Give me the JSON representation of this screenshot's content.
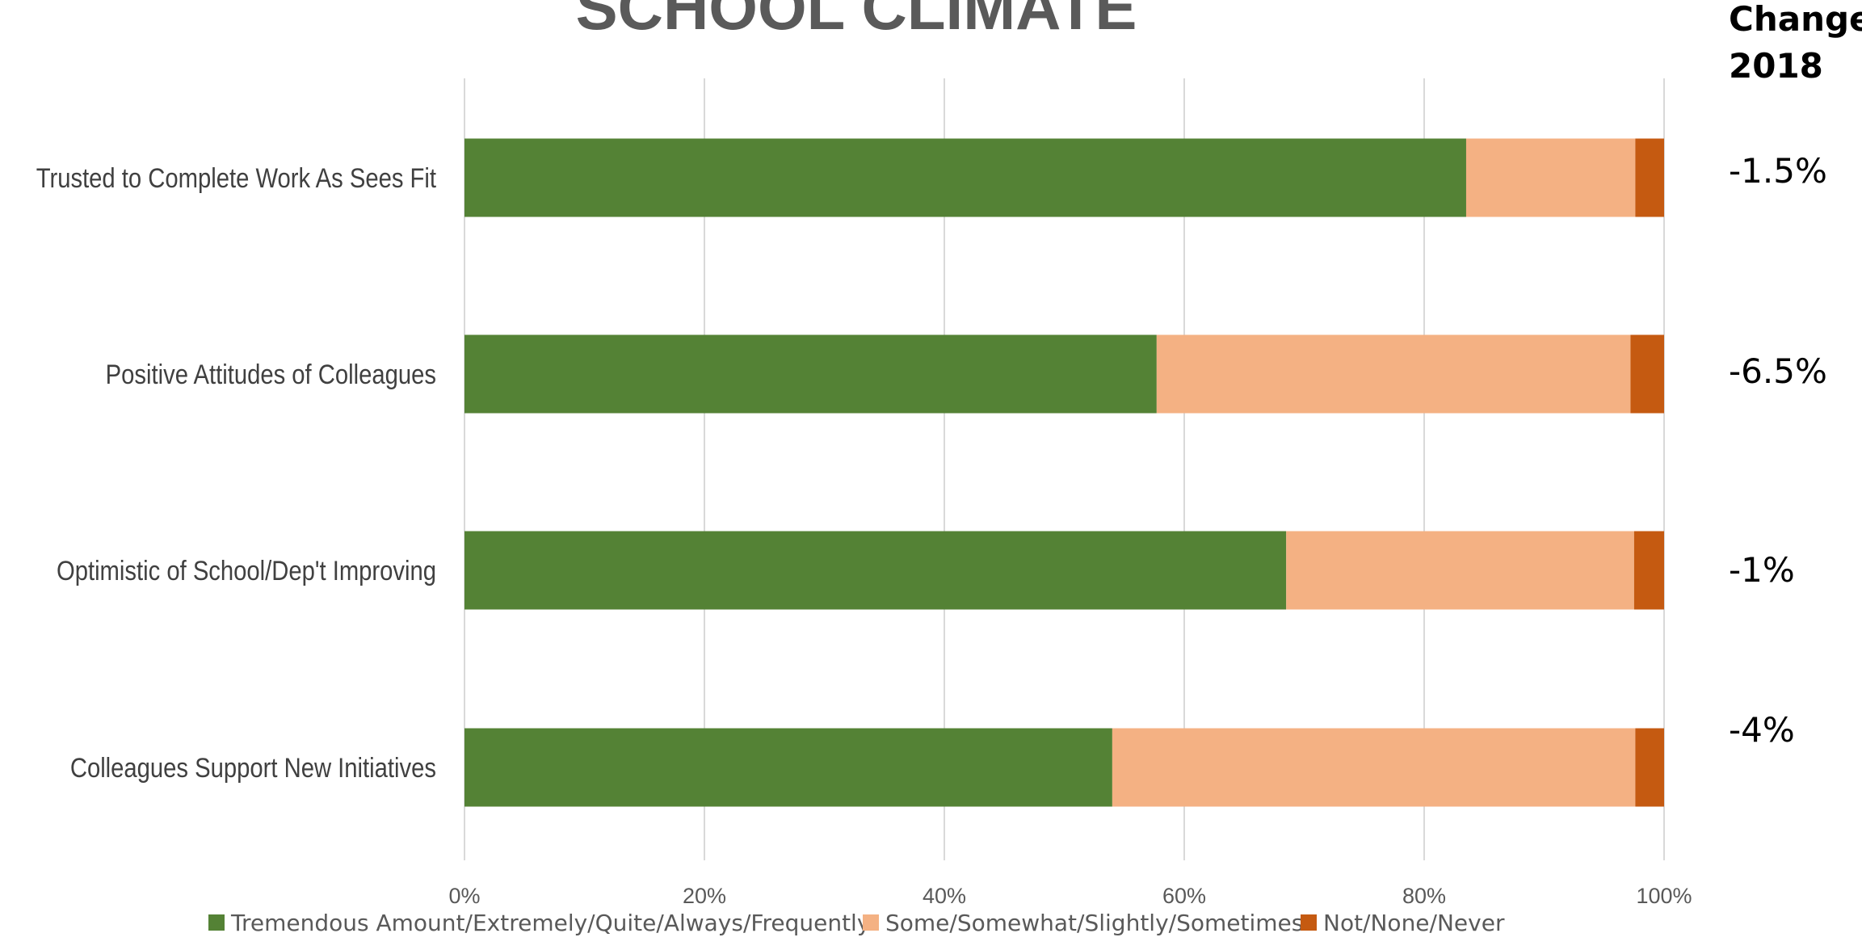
{
  "chart_data": {
    "type": "bar",
    "orientation": "horizontal",
    "stacked": true,
    "title": "SCHOOL CLIMATE",
    "categories": [
      "Trusted to Complete Work As Sees Fit",
      "Positive Attitudes of Colleagues",
      "Optimistic of School/Dep't Improving",
      "Colleagues Support New Initiatives"
    ],
    "series": [
      {
        "name": "Tremendous Amount/Extremely/Quite/Always/Frequently",
        "color": "#548235",
        "values": [
          83.5,
          57.7,
          68.5,
          54.0
        ]
      },
      {
        "name": "Some/Somewhat/Slightly/Sometimes",
        "color": "#F4B183",
        "values": [
          14.1,
          39.5,
          29.0,
          43.6
        ]
      },
      {
        "name": "Not/None/Never",
        "color": "#C55A11",
        "values": [
          2.4,
          2.8,
          2.5,
          2.4
        ]
      }
    ],
    "xlim": [
      0,
      100
    ],
    "xticks": [
      "0%",
      "20%",
      "40%",
      "60%",
      "80%",
      "100%"
    ],
    "grid": true,
    "legend_position": "bottom"
  },
  "change": {
    "header_line1": "Change",
    "header_line2": "2018",
    "values": [
      "-1.5%",
      "-6.5%",
      "-1%",
      "-4%"
    ]
  }
}
